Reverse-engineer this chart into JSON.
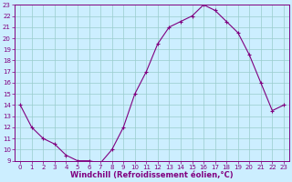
{
  "x": [
    0,
    1,
    2,
    3,
    4,
    5,
    6,
    7,
    8,
    9,
    10,
    11,
    12,
    13,
    14,
    15,
    16,
    17,
    18,
    19,
    20,
    21,
    22,
    23
  ],
  "y": [
    14,
    12,
    11,
    10.5,
    9.5,
    9,
    9,
    8.8,
    10,
    12,
    15,
    17,
    19.5,
    21,
    21.5,
    22,
    23,
    22.5,
    21.5,
    20.5,
    18.5,
    16,
    13.5,
    14
  ],
  "line_color": "#800080",
  "marker": "+",
  "marker_color": "#800080",
  "bg_color": "#cceeff",
  "grid_color": "#99cccc",
  "xlabel": "Windchill (Refroidissement éolien,°C)",
  "xlim": [
    -0.5,
    23.5
  ],
  "ylim": [
    9,
    23
  ],
  "yticks": [
    9,
    10,
    11,
    12,
    13,
    14,
    15,
    16,
    17,
    18,
    19,
    20,
    21,
    22,
    23
  ],
  "xticks": [
    0,
    1,
    2,
    3,
    4,
    5,
    6,
    7,
    8,
    9,
    10,
    11,
    12,
    13,
    14,
    15,
    16,
    17,
    18,
    19,
    20,
    21,
    22,
    23
  ],
  "tick_color": "#800080",
  "label_color": "#800080",
  "tick_fontsize": 5.0,
  "xlabel_fontsize": 6.0
}
